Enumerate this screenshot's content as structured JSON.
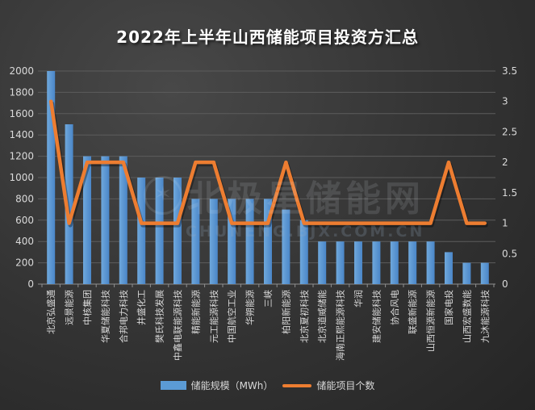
{
  "title": "2022年上半年山西储能项目投资方汇总",
  "watermark": {
    "logo_glyph": "✶",
    "brand": "北极星储能网",
    "domain": "CHUNENG.BJX.COM.CN"
  },
  "legend": [
    {
      "label": "储能规模（MWh）",
      "swatch": "bar",
      "color": "#5B9BD5"
    },
    {
      "label": "储能项目个数",
      "swatch": "line",
      "color": "#ED7D31"
    }
  ],
  "colors": {
    "bar": "#5B9BD5",
    "bar_light": "#6FA8DC",
    "bar_dark": "#4A86C8",
    "line": "#ED7D31",
    "grid": "#5c5c5c",
    "axis_baseline": "#8f8f8f",
    "axis_text": "#d9d9d9",
    "background": "#333333"
  },
  "chart_data": {
    "type": "bar",
    "subtype": "combo bar + line, dual axis",
    "title": "2022年上半年山西储能项目投资方汇总",
    "categories": [
      "北京弘盛通",
      "远景能源",
      "中核集团",
      "华夏储能科技",
      "合邦电力科技",
      "井盛化工",
      "樊氏科技发展",
      "中鑫电联能源科技",
      "精能新能源",
      "元工能源科技",
      "中国航空工业",
      "华朔能源",
      "三峡",
      "柏阳新能源",
      "北京夏初科技",
      "北京道威储能",
      "海南正熙能源科技",
      "华润",
      "建安储能科技",
      "协合风电",
      "联盛新能源",
      "山西恒源新能源",
      "国家电投",
      "山西宏盛数能",
      "九沐能源科技"
    ],
    "series": [
      {
        "name": "储能规模（MWh）",
        "type": "bar",
        "axis": "left",
        "color": "#5B9BD5",
        "values": [
          2000,
          1500,
          1200,
          1200,
          1200,
          1000,
          1000,
          1000,
          800,
          800,
          800,
          800,
          800,
          700,
          600,
          400,
          400,
          400,
          400,
          400,
          400,
          400,
          300,
          200,
          200
        ]
      },
      {
        "name": "储能项目个数",
        "type": "line",
        "axis": "right",
        "color": "#ED7D31",
        "values": [
          3,
          1,
          2,
          2,
          2,
          1,
          1,
          1,
          2,
          2,
          1,
          1,
          1,
          2,
          1,
          1,
          1,
          1,
          1,
          1,
          1,
          1,
          2,
          1,
          1
        ]
      }
    ],
    "left_axis": {
      "min": 0,
      "max": 2000,
      "step": 200,
      "ticks": [
        "0",
        "200",
        "400",
        "600",
        "800",
        "1000",
        "1200",
        "1400",
        "1600",
        "1800",
        "2000"
      ]
    },
    "right_axis": {
      "min": 0,
      "max": 3.5,
      "step": 0.5,
      "ticks": [
        "0",
        "0.5",
        "1",
        "1.5",
        "2",
        "2.5",
        "3",
        "3.5"
      ]
    },
    "grid": true,
    "legend_position": "bottom",
    "x_label_rotation": -90
  }
}
